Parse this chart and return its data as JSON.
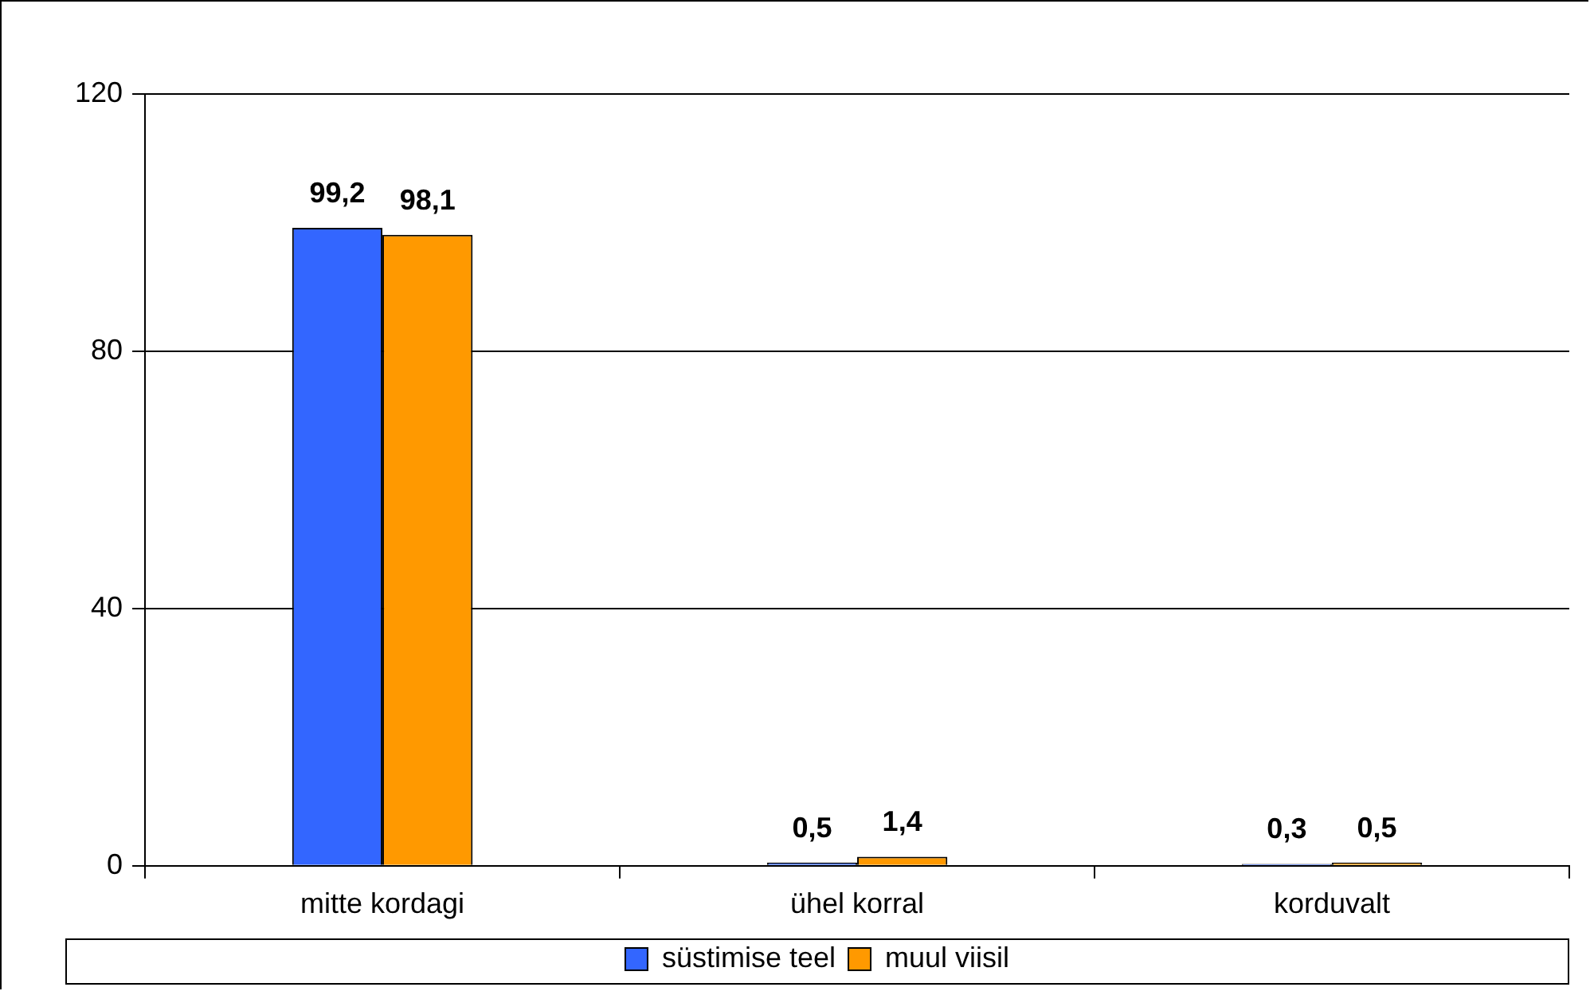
{
  "chart_data": {
    "type": "bar",
    "categories": [
      "mitte kordagi",
      "ühel korral",
      "korduvalt"
    ],
    "series": [
      {
        "name": "süstimise teel",
        "color": "#3366ff",
        "values": [
          99.2,
          0.5,
          0.3
        ],
        "value_labels": [
          "99,2",
          "0,5",
          "0,3"
        ]
      },
      {
        "name": "muul viisil",
        "color": "#ff9900",
        "values": [
          98.1,
          1.4,
          0.5
        ],
        "value_labels": [
          "98,1",
          "1,4",
          "0,5"
        ]
      }
    ],
    "ylim": [
      0,
      120
    ],
    "yticks": [
      0,
      40,
      80,
      120
    ],
    "grid": "y",
    "legend": "bottom"
  }
}
